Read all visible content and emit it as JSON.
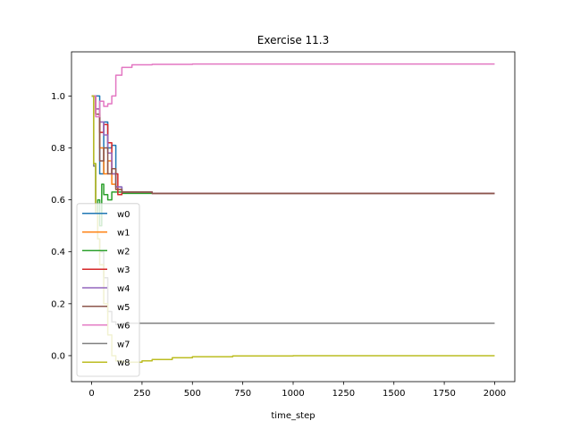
{
  "chart_data": {
    "type": "line",
    "title": "Exercise 11.3",
    "xlabel": "time_step",
    "ylabel": "",
    "xlim": [
      -100,
      2100
    ],
    "ylim": [
      -0.1,
      1.17
    ],
    "xticks": [
      0,
      250,
      500,
      750,
      1000,
      1250,
      1500,
      1750,
      2000
    ],
    "yticks": [
      0.0,
      0.2,
      0.4,
      0.6,
      0.8,
      1.0
    ],
    "grid": false,
    "legend": "lower-left",
    "series": [
      {
        "name": "w0",
        "color": "#1f77b4",
        "x": [
          0,
          20,
          40,
          60,
          80,
          100,
          120,
          150,
          300,
          2000
        ],
        "y": [
          1.0,
          1.0,
          0.7,
          0.9,
          0.8,
          0.81,
          0.65,
          0.63,
          0.625,
          0.625
        ]
      },
      {
        "name": "w1",
        "color": "#ff7f0e",
        "x": [
          0,
          20,
          40,
          60,
          80,
          100,
          120,
          150,
          300,
          2000
        ],
        "y": [
          1.0,
          0.95,
          0.8,
          0.7,
          0.75,
          0.66,
          0.64,
          0.63,
          0.625,
          0.625
        ]
      },
      {
        "name": "w2",
        "color": "#2ca02c",
        "x": [
          0,
          10,
          20,
          30,
          40,
          50,
          60,
          80,
          100,
          150,
          300,
          2000
        ],
        "y": [
          1.0,
          0.74,
          0.55,
          0.6,
          0.5,
          0.66,
          0.62,
          0.6,
          0.63,
          0.625,
          0.625,
          0.625
        ]
      },
      {
        "name": "w3",
        "color": "#d62728",
        "x": [
          0,
          20,
          40,
          60,
          80,
          100,
          120,
          130,
          150,
          300,
          2000
        ],
        "y": [
          1.0,
          0.93,
          0.86,
          0.89,
          0.82,
          0.7,
          0.7,
          0.62,
          0.63,
          0.625,
          0.625
        ]
      },
      {
        "name": "w4",
        "color": "#9467bd",
        "x": [
          0,
          20,
          40,
          60,
          80,
          100,
          120,
          150,
          300,
          2000
        ],
        "y": [
          1.0,
          0.95,
          0.9,
          0.85,
          0.78,
          0.7,
          0.65,
          0.63,
          0.625,
          0.625
        ]
      },
      {
        "name": "w5",
        "color": "#8c564b",
        "x": [
          0,
          20,
          40,
          60,
          80,
          100,
          120,
          150,
          300,
          2000
        ],
        "y": [
          1.0,
          0.93,
          0.75,
          0.8,
          0.7,
          0.72,
          0.64,
          0.63,
          0.625,
          0.625
        ]
      },
      {
        "name": "w6",
        "color": "#e377c2",
        "x": [
          0,
          20,
          40,
          60,
          80,
          100,
          120,
          150,
          200,
          300,
          500,
          1000,
          2000
        ],
        "y": [
          1.0,
          0.92,
          0.98,
          0.96,
          0.97,
          1.0,
          1.08,
          1.11,
          1.12,
          1.122,
          1.123,
          1.123,
          1.123
        ]
      },
      {
        "name": "w7",
        "color": "#7f7f7f",
        "x": [
          0,
          10,
          20,
          30,
          40,
          60,
          80,
          100,
          120,
          150,
          200,
          300,
          500,
          2000
        ],
        "y": [
          1.0,
          0.73,
          0.55,
          0.45,
          0.4,
          0.3,
          0.17,
          0.13,
          0.12,
          0.125,
          0.125,
          0.125,
          0.125,
          0.125
        ]
      },
      {
        "name": "w8",
        "color": "#bcbd22",
        "x": [
          0,
          10,
          20,
          30,
          40,
          60,
          80,
          100,
          120,
          150,
          200,
          250,
          300,
          400,
          500,
          700,
          1000,
          1500,
          2000
        ],
        "y": [
          1.0,
          0.74,
          0.55,
          0.45,
          0.35,
          0.2,
          0.08,
          0.0,
          -0.02,
          -0.025,
          -0.025,
          -0.02,
          -0.015,
          -0.008,
          -0.004,
          -0.001,
          0.0,
          0.0,
          0.0
        ]
      }
    ]
  }
}
